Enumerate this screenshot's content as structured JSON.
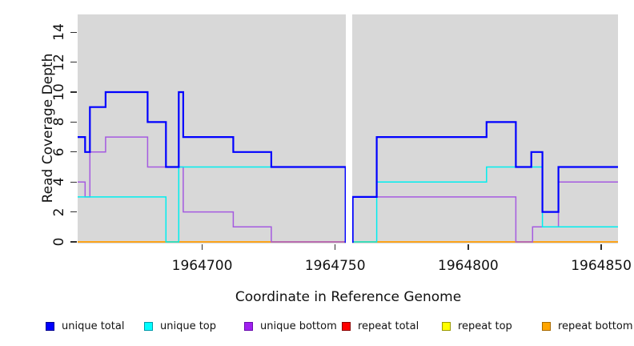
{
  "axes": {
    "x_label": "Coordinate in Reference Genome",
    "y_label": "Read Coverage Depth"
  },
  "chart_data": {
    "type": "line",
    "subtype": "step-coverage-plot",
    "title": "",
    "xlabel": "Coordinate in Reference Genome",
    "ylabel": "Read Coverage Depth",
    "xlim": [
      1964653.2,
      1964856.3
    ],
    "ylim": [
      0,
      15.3
    ],
    "xticks": [
      1964700,
      1964750,
      1964800,
      1964850
    ],
    "yticks": [
      0,
      2,
      4,
      6,
      8,
      10,
      12,
      14
    ],
    "grid": false,
    "plot_bg": "#d8d8d8",
    "legend_position": "bottom",
    "no_data_gap": [
      1964754.1,
      1964756.3
    ],
    "draw_order": [
      3,
      4,
      5,
      2,
      1,
      0
    ],
    "series": [
      {
        "name": "unique total",
        "color": "#0000ff",
        "legend_fill": "#0000ff",
        "legend_border": "#000090",
        "width": 2.2,
        "steps": [
          [
            1964653.2,
            7
          ],
          [
            1964656.0,
            6
          ],
          [
            1964657.8,
            9
          ],
          [
            1964663.7,
            10
          ],
          [
            1964679.5,
            8
          ],
          [
            1964686.4,
            5
          ],
          [
            1964691.2,
            10
          ],
          [
            1964692.9,
            7
          ],
          [
            1964711.7,
            6
          ],
          [
            1964726.0,
            5
          ],
          [
            1964753.9,
            0
          ],
          [
            1964756.6,
            3
          ],
          [
            1964765.6,
            7
          ],
          [
            1964806.9,
            8
          ],
          [
            1964817.9,
            5
          ],
          [
            1964823.7,
            6
          ],
          [
            1964827.9,
            2
          ],
          [
            1964833.9,
            5
          ]
        ]
      },
      {
        "name": "unique top",
        "color": "#00eeee",
        "legend_fill": "#00ffff",
        "legend_border": "#009aaa",
        "width": 1.5,
        "steps": [
          [
            1964653.2,
            3
          ],
          [
            1964686.4,
            0
          ],
          [
            1964691.2,
            5
          ],
          [
            1964753.9,
            0
          ],
          [
            1964765.6,
            4
          ],
          [
            1964806.9,
            5
          ],
          [
            1964827.9,
            1
          ]
        ]
      },
      {
        "name": "unique bottom",
        "color": "#a55ae0",
        "legend_fill": "#a020f0",
        "legend_border": "#6a0dad",
        "width": 1.5,
        "steps": [
          [
            1964653.2,
            4
          ],
          [
            1964656.0,
            3
          ],
          [
            1964657.8,
            6
          ],
          [
            1964663.7,
            7
          ],
          [
            1964679.5,
            5
          ],
          [
            1964692.9,
            2
          ],
          [
            1964711.7,
            1
          ],
          [
            1964726.0,
            0
          ],
          [
            1964756.6,
            3
          ],
          [
            1964817.9,
            0
          ],
          [
            1964824.2,
            1
          ],
          [
            1964833.9,
            4
          ]
        ]
      },
      {
        "name": "repeat total",
        "color": "#ee0000",
        "legend_fill": "#ff0000",
        "legend_border": "#8b0000",
        "width": 1.5,
        "steps": [
          [
            1964653.2,
            0
          ]
        ]
      },
      {
        "name": "repeat top",
        "color": "#f0f000",
        "legend_fill": "#ffff00",
        "legend_border": "#9a9a00",
        "width": 1.5,
        "steps": [
          [
            1964653.2,
            0
          ]
        ]
      },
      {
        "name": "repeat bottom",
        "color": "#ffa319",
        "legend_fill": "#ffa500",
        "legend_border": "#a86a00",
        "width": 1.7,
        "steps": [
          [
            1964653.2,
            0
          ]
        ]
      }
    ]
  },
  "layout_note": ""
}
